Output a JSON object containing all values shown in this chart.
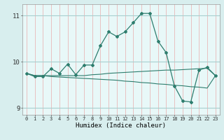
{
  "title": "",
  "xlabel": "Humidex (Indice chaleur)",
  "bg_color": "#d8eeee",
  "plot_bg_color": "#e8f8f8",
  "grid_color_v": "#e8b8b8",
  "grid_color_h": "#a8d0d0",
  "line_color": "#2e7d6e",
  "x": [
    0,
    1,
    2,
    3,
    4,
    5,
    6,
    7,
    8,
    9,
    10,
    11,
    12,
    13,
    14,
    15,
    16,
    17,
    18,
    19,
    20,
    21,
    22,
    23
  ],
  "series1": [
    9.75,
    9.68,
    9.68,
    9.85,
    9.75,
    9.95,
    9.72,
    9.93,
    9.93,
    10.35,
    10.65,
    10.55,
    10.65,
    10.85,
    11.05,
    11.05,
    10.45,
    10.2,
    9.48,
    9.15,
    9.13,
    9.82,
    9.88,
    9.7
  ],
  "series2": [
    9.75,
    9.7,
    9.7,
    9.7,
    9.7,
    9.7,
    9.7,
    9.7,
    9.72,
    9.73,
    9.75,
    9.76,
    9.77,
    9.78,
    9.79,
    9.8,
    9.81,
    9.82,
    9.82,
    9.83,
    9.84,
    9.85,
    9.86,
    9.7
  ],
  "series3": [
    9.75,
    9.7,
    9.7,
    9.68,
    9.67,
    9.66,
    9.65,
    9.64,
    9.63,
    9.62,
    9.61,
    9.6,
    9.58,
    9.57,
    9.55,
    9.54,
    9.52,
    9.51,
    9.49,
    9.48,
    9.46,
    9.45,
    9.43,
    9.7
  ],
  "ylim": [
    8.85,
    11.25
  ],
  "yticks": [
    9,
    10,
    11
  ],
  "xticks": [
    0,
    1,
    2,
    3,
    4,
    5,
    6,
    7,
    8,
    9,
    10,
    11,
    12,
    13,
    14,
    15,
    16,
    17,
    18,
    19,
    20,
    21,
    22,
    23
  ]
}
